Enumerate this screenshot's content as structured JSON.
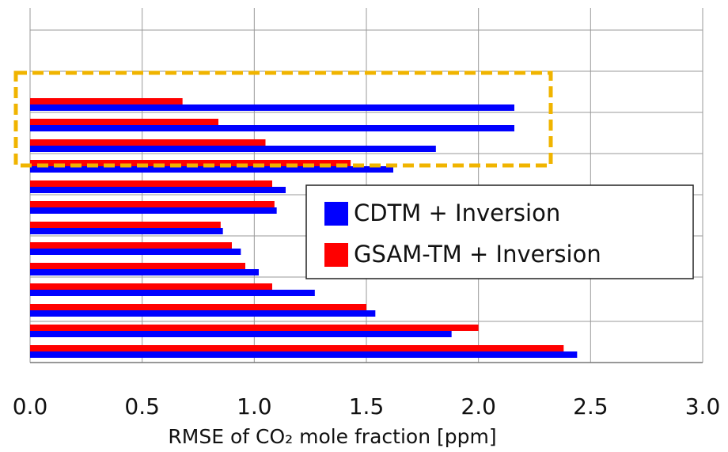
{
  "chart_data": {
    "type": "barh",
    "xlabel": "RMSE of CO₂ mole fraction [ppm]",
    "categories": [
      null,
      null,
      null,
      null,
      null,
      null,
      null,
      null,
      null,
      null,
      null,
      null,
      null
    ],
    "series": [
      {
        "name": "CDTM + Inversion",
        "color": "#0000ff",
        "values": [
          2.16,
          2.16,
          1.81,
          1.62,
          1.14,
          1.1,
          0.86,
          0.94,
          1.02,
          1.27,
          1.54,
          1.88,
          2.44
        ]
      },
      {
        "name": "GSAM-TM + Inversion",
        "color": "#ff0000",
        "values": [
          0.68,
          0.84,
          1.05,
          1.43,
          1.08,
          1.09,
          0.85,
          0.9,
          0.96,
          1.08,
          1.5,
          2.0,
          2.38
        ]
      }
    ],
    "xlim": [
      0,
      3
    ],
    "xticks": [
      {
        "value": 0,
        "label": "0.0"
      },
      {
        "value": 0.5,
        "label": "0.5"
      },
      {
        "value": 1,
        "label": "1.0"
      },
      {
        "value": 1.5,
        "label": "1.5"
      },
      {
        "value": 2,
        "label": "2.0"
      },
      {
        "value": 2.5,
        "label": "2.5"
      },
      {
        "value": 3,
        "label": "3.0"
      }
    ],
    "grid": true
  }
}
